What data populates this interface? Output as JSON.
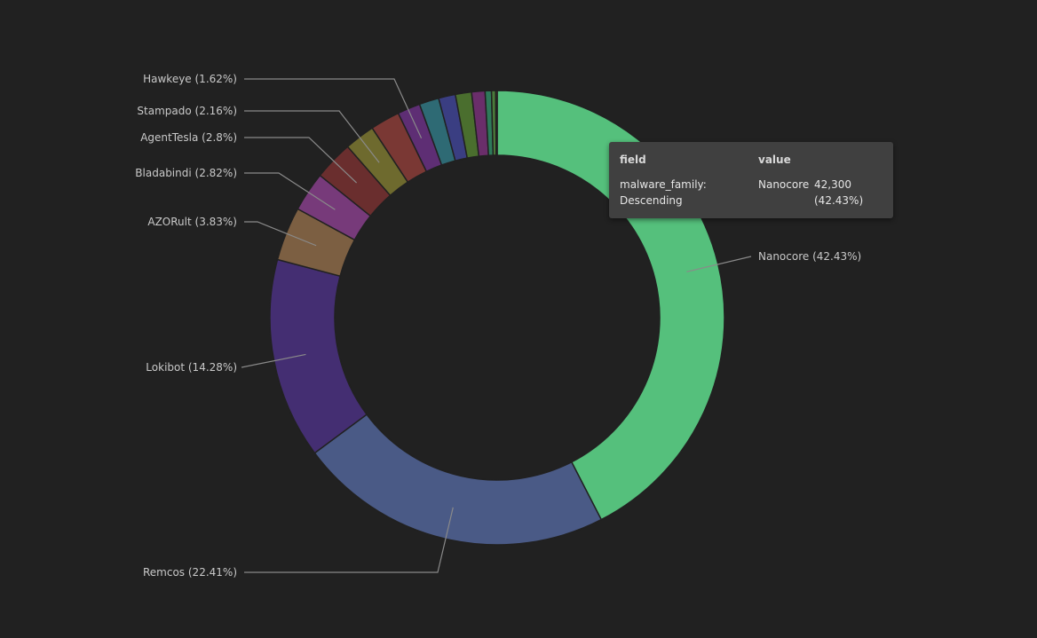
{
  "chart_data": {
    "type": "pie",
    "donut": true,
    "slices": [
      {
        "label": "Nanocore",
        "percent": 42.43,
        "display": "Nanocore (42.43%)",
        "color": "#55c07c"
      },
      {
        "label": "Remcos",
        "percent": 22.41,
        "display": "Remcos (22.41%)",
        "color": "#4a5a86"
      },
      {
        "label": "Lokibot",
        "percent": 14.28,
        "display": "Lokibot (14.28%)",
        "color": "#442e72"
      },
      {
        "label": "AZORult",
        "percent": 3.83,
        "display": "AZORult (3.83%)",
        "color": "#7c5f42"
      },
      {
        "label": "Bladabindi",
        "percent": 2.82,
        "display": "Bladabindi (2.82%)",
        "color": "#773a7a"
      },
      {
        "label": "AgentTesla",
        "percent": 2.8,
        "display": "AgentTesla (2.8%)",
        "color": "#6a2e2e"
      },
      {
        "label": "Stampado",
        "percent": 2.16,
        "display": "Stampado (2.16%)",
        "color": "#6e6a2e"
      },
      {
        "label": "",
        "percent": 2.1,
        "display": "",
        "color": "#7a3834"
      },
      {
        "label": "Hawkeye",
        "percent": 1.62,
        "display": "Hawkeye (1.62%)",
        "color": "#5e2e74"
      },
      {
        "label": "",
        "percent": 1.4,
        "display": "",
        "color": "#2e6a74"
      },
      {
        "label": "",
        "percent": 1.2,
        "display": "",
        "color": "#3a3e82"
      },
      {
        "label": "",
        "percent": 1.15,
        "display": "",
        "color": "#4a6e2e"
      },
      {
        "label": "",
        "percent": 0.95,
        "display": "",
        "color": "#6a2e6a"
      },
      {
        "label": "",
        "percent": 0.45,
        "display": "",
        "color": "#2e7a5a"
      },
      {
        "label": "",
        "percent": 0.3,
        "display": "",
        "color": "#4a7a3a"
      },
      {
        "label": "",
        "percent": 0.1,
        "display": "",
        "color": "#c87a2a"
      }
    ]
  },
  "tooltip": {
    "field_header": "field",
    "value_header": "value",
    "key_line1": "malware_family:",
    "key_line2": "Descending",
    "term": "Nanocore",
    "count": "42,300",
    "percent": "(42.43%)"
  }
}
